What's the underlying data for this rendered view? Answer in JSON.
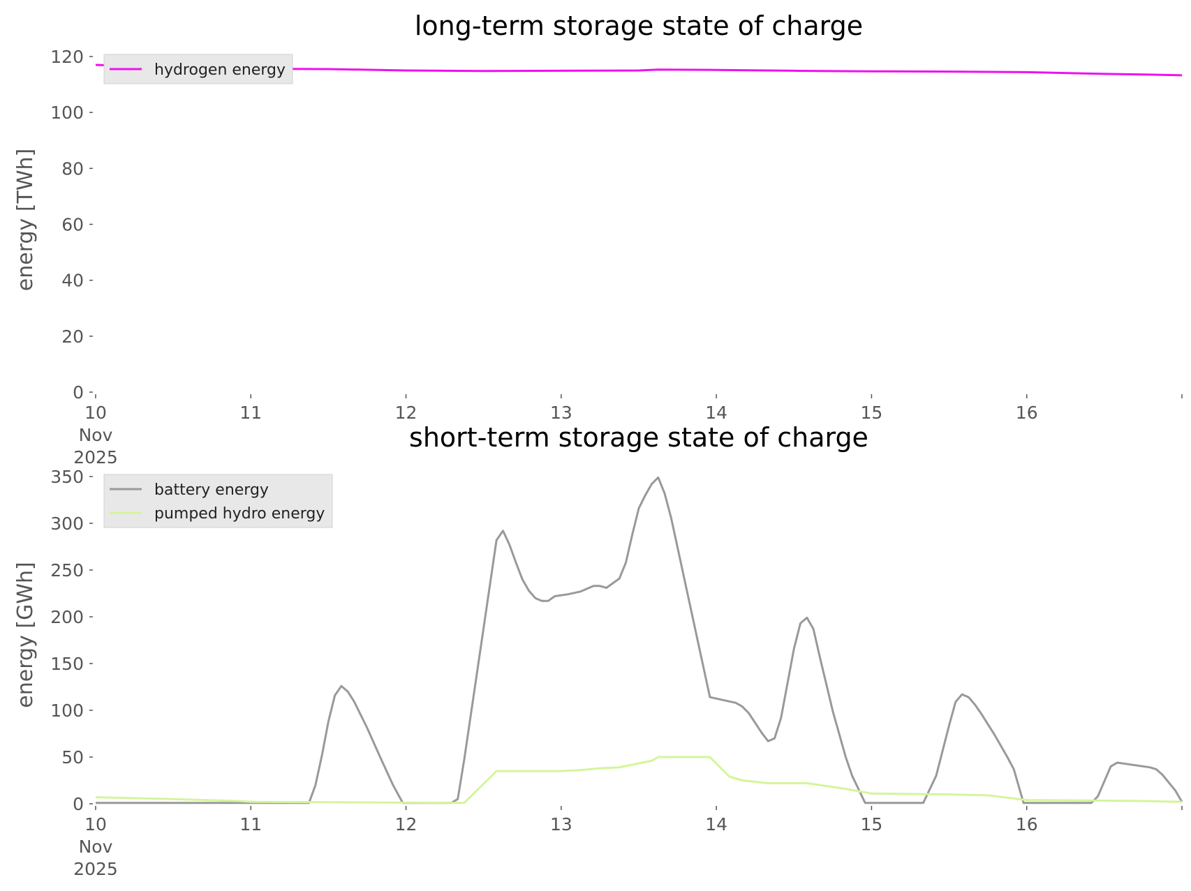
{
  "chart_data": [
    {
      "type": "line",
      "title": "long-term storage state of charge",
      "xlabel": "",
      "ylabel": "energy [TWh]",
      "ylim": [
        0,
        120
      ],
      "xlim": [
        "2025-11-10 00:00",
        "2025-11-17 00:00"
      ],
      "yticks": [
        "0",
        "20",
        "40",
        "60",
        "80",
        "100",
        "120"
      ],
      "xtick_labels": [
        {
          "day": "10",
          "month": "Nov",
          "year": "2025"
        },
        {
          "day": "11"
        },
        {
          "day": "12"
        },
        {
          "day": "13"
        },
        {
          "day": "14"
        },
        {
          "day": "15"
        },
        {
          "day": "16"
        },
        {
          "day": ""
        }
      ],
      "grid": false,
      "legend_position": "top-left",
      "series": [
        {
          "name": "hydrogen energy",
          "color": "#ee11ee",
          "points": [
            [
              "2025-11-10 00:00",
              117.0
            ],
            [
              "2025-11-10 12:00",
              116.0
            ],
            [
              "2025-11-11 00:00",
              115.6
            ],
            [
              "2025-11-11 12:00",
              115.5
            ],
            [
              "2025-11-12 00:00",
              115.0
            ],
            [
              "2025-11-12 12:00",
              114.8
            ],
            [
              "2025-11-13 00:00",
              114.9
            ],
            [
              "2025-11-13 12:00",
              115.0
            ],
            [
              "2025-11-13 15:00",
              115.3
            ],
            [
              "2025-11-14 00:00",
              115.2
            ],
            [
              "2025-11-14 12:00",
              114.9
            ],
            [
              "2025-11-15 00:00",
              114.7
            ],
            [
              "2025-11-15 12:00",
              114.6
            ],
            [
              "2025-11-16 00:00",
              114.4
            ],
            [
              "2025-11-16 12:00",
              113.8
            ],
            [
              "2025-11-16 18:00",
              113.6
            ],
            [
              "2025-11-17 00:00",
              113.3
            ]
          ]
        }
      ]
    },
    {
      "type": "line",
      "title": "short-term storage state of charge",
      "xlabel": "",
      "ylabel": "energy [GWh]",
      "ylim": [
        0,
        350
      ],
      "xlim": [
        "2025-11-10 00:00",
        "2025-11-17 00:00"
      ],
      "yticks": [
        "0",
        "50",
        "100",
        "150",
        "200",
        "250",
        "300",
        "350"
      ],
      "xtick_labels": [
        {
          "day": "10",
          "month": "Nov",
          "year": "2025"
        },
        {
          "day": "11"
        },
        {
          "day": "12"
        },
        {
          "day": "13"
        },
        {
          "day": "14"
        },
        {
          "day": "15"
        },
        {
          "day": "16"
        },
        {
          "day": ""
        }
      ],
      "grid": false,
      "legend_position": "top-left",
      "series": [
        {
          "name": "battery energy",
          "color": "#999999",
          "points": [
            [
              "2025-11-10 00:00",
              1
            ],
            [
              "2025-11-11 09:00",
              1
            ],
            [
              "2025-11-11 10:00",
              20
            ],
            [
              "2025-11-11 11:00",
              52
            ],
            [
              "2025-11-11 12:00",
              88
            ],
            [
              "2025-11-11 13:00",
              116
            ],
            [
              "2025-11-11 14:00",
              126
            ],
            [
              "2025-11-11 15:00",
              120
            ],
            [
              "2025-11-11 16:00",
              109
            ],
            [
              "2025-11-11 18:00",
              81
            ],
            [
              "2025-11-11 20:00",
              50
            ],
            [
              "2025-11-11 22:00",
              20
            ],
            [
              "2025-11-11 23:30",
              1
            ],
            [
              "2025-11-12 07:00",
              1
            ],
            [
              "2025-11-12 08:00",
              5
            ],
            [
              "2025-11-12 09:00",
              47
            ],
            [
              "2025-11-12 12:00",
              188
            ],
            [
              "2025-11-12 14:00",
              282
            ],
            [
              "2025-11-12 15:00",
              292
            ],
            [
              "2025-11-12 16:00",
              277
            ],
            [
              "2025-11-12 17:00",
              258
            ],
            [
              "2025-11-12 18:00",
              240
            ],
            [
              "2025-11-12 19:00",
              228
            ],
            [
              "2025-11-12 20:00",
              220
            ],
            [
              "2025-11-12 21:00",
              217
            ],
            [
              "2025-11-12 22:00",
              217
            ],
            [
              "2025-11-12 23:00",
              222
            ],
            [
              "2025-11-13 01:00",
              224
            ],
            [
              "2025-11-13 03:00",
              227
            ],
            [
              "2025-11-13 05:00",
              233
            ],
            [
              "2025-11-13 06:00",
              233
            ],
            [
              "2025-11-13 07:00",
              231
            ],
            [
              "2025-11-13 09:00",
              241
            ],
            [
              "2025-11-13 10:00",
              258
            ],
            [
              "2025-11-13 11:00",
              288
            ],
            [
              "2025-11-13 12:00",
              316
            ],
            [
              "2025-11-13 13:00",
              330
            ],
            [
              "2025-11-13 14:00",
              342
            ],
            [
              "2025-11-13 15:00",
              349
            ],
            [
              "2025-11-13 16:00",
              332
            ],
            [
              "2025-11-13 17:00",
              306
            ],
            [
              "2025-11-13 23:00",
              114
            ],
            [
              "2025-11-14 03:00",
              108
            ],
            [
              "2025-11-14 04:00",
              104
            ],
            [
              "2025-11-14 05:00",
              97
            ],
            [
              "2025-11-14 07:00",
              76
            ],
            [
              "2025-11-14 08:00",
              67
            ],
            [
              "2025-11-14 09:00",
              70
            ],
            [
              "2025-11-14 10:00",
              92
            ],
            [
              "2025-11-14 12:00",
              166
            ],
            [
              "2025-11-14 13:00",
              193
            ],
            [
              "2025-11-14 14:00",
              199
            ],
            [
              "2025-11-14 15:00",
              187
            ],
            [
              "2025-11-14 16:00",
              157
            ],
            [
              "2025-11-14 18:00",
              99
            ],
            [
              "2025-11-14 20:00",
              50
            ],
            [
              "2025-11-14 21:00",
              30
            ],
            [
              "2025-11-14 23:00",
              1
            ],
            [
              "2025-11-15 08:00",
              1
            ],
            [
              "2025-11-15 10:00",
              30
            ],
            [
              "2025-11-15 12:00",
              84
            ],
            [
              "2025-11-15 13:00",
              109
            ],
            [
              "2025-11-15 14:00",
              117
            ],
            [
              "2025-11-15 15:00",
              114
            ],
            [
              "2025-11-15 16:00",
              106
            ],
            [
              "2025-11-15 17:00",
              96
            ],
            [
              "2025-11-15 19:00",
              74
            ],
            [
              "2025-11-15 21:00",
              50
            ],
            [
              "2025-11-15 22:00",
              37
            ],
            [
              "2025-11-15 23:30",
              1
            ],
            [
              "2025-11-16 10:00",
              1
            ],
            [
              "2025-11-16 11:00",
              8
            ],
            [
              "2025-11-16 13:00",
              40
            ],
            [
              "2025-11-16 14:00",
              44
            ],
            [
              "2025-11-16 16:00",
              42
            ],
            [
              "2025-11-16 18:00",
              40
            ],
            [
              "2025-11-16 19:00",
              39
            ],
            [
              "2025-11-16 20:00",
              37
            ],
            [
              "2025-11-16 21:00",
              31
            ],
            [
              "2025-11-16 23:00",
              14
            ],
            [
              "2025-11-17 00:00",
              2
            ]
          ]
        },
        {
          "name": "pumped hydro energy",
          "color": "#d4f59a",
          "points": [
            [
              "2025-11-10 00:00",
              7
            ],
            [
              "2025-11-10 12:00",
              5
            ],
            [
              "2025-11-10 22:00",
              3
            ],
            [
              "2025-11-11 00:00",
              2
            ],
            [
              "2025-11-12 09:00",
              1
            ],
            [
              "2025-11-12 14:00",
              35
            ],
            [
              "2025-11-13 00:00",
              35
            ],
            [
              "2025-11-13 03:00",
              36
            ],
            [
              "2025-11-13 06:00",
              38
            ],
            [
              "2025-11-13 09:00",
              39
            ],
            [
              "2025-11-13 14:00",
              46
            ],
            [
              "2025-11-13 15:00",
              50
            ],
            [
              "2025-11-13 23:00",
              50
            ],
            [
              "2025-11-14 02:00",
              29
            ],
            [
              "2025-11-14 04:00",
              25
            ],
            [
              "2025-11-14 08:00",
              22
            ],
            [
              "2025-11-14 14:00",
              22
            ],
            [
              "2025-11-14 20:00",
              16
            ],
            [
              "2025-11-15 00:00",
              11
            ],
            [
              "2025-11-15 12:00",
              10
            ],
            [
              "2025-11-15 18:00",
              9
            ],
            [
              "2025-11-16 00:00",
              4
            ],
            [
              "2025-11-16 18:00",
              3
            ],
            [
              "2025-11-17 00:00",
              2
            ]
          ]
        }
      ]
    }
  ]
}
